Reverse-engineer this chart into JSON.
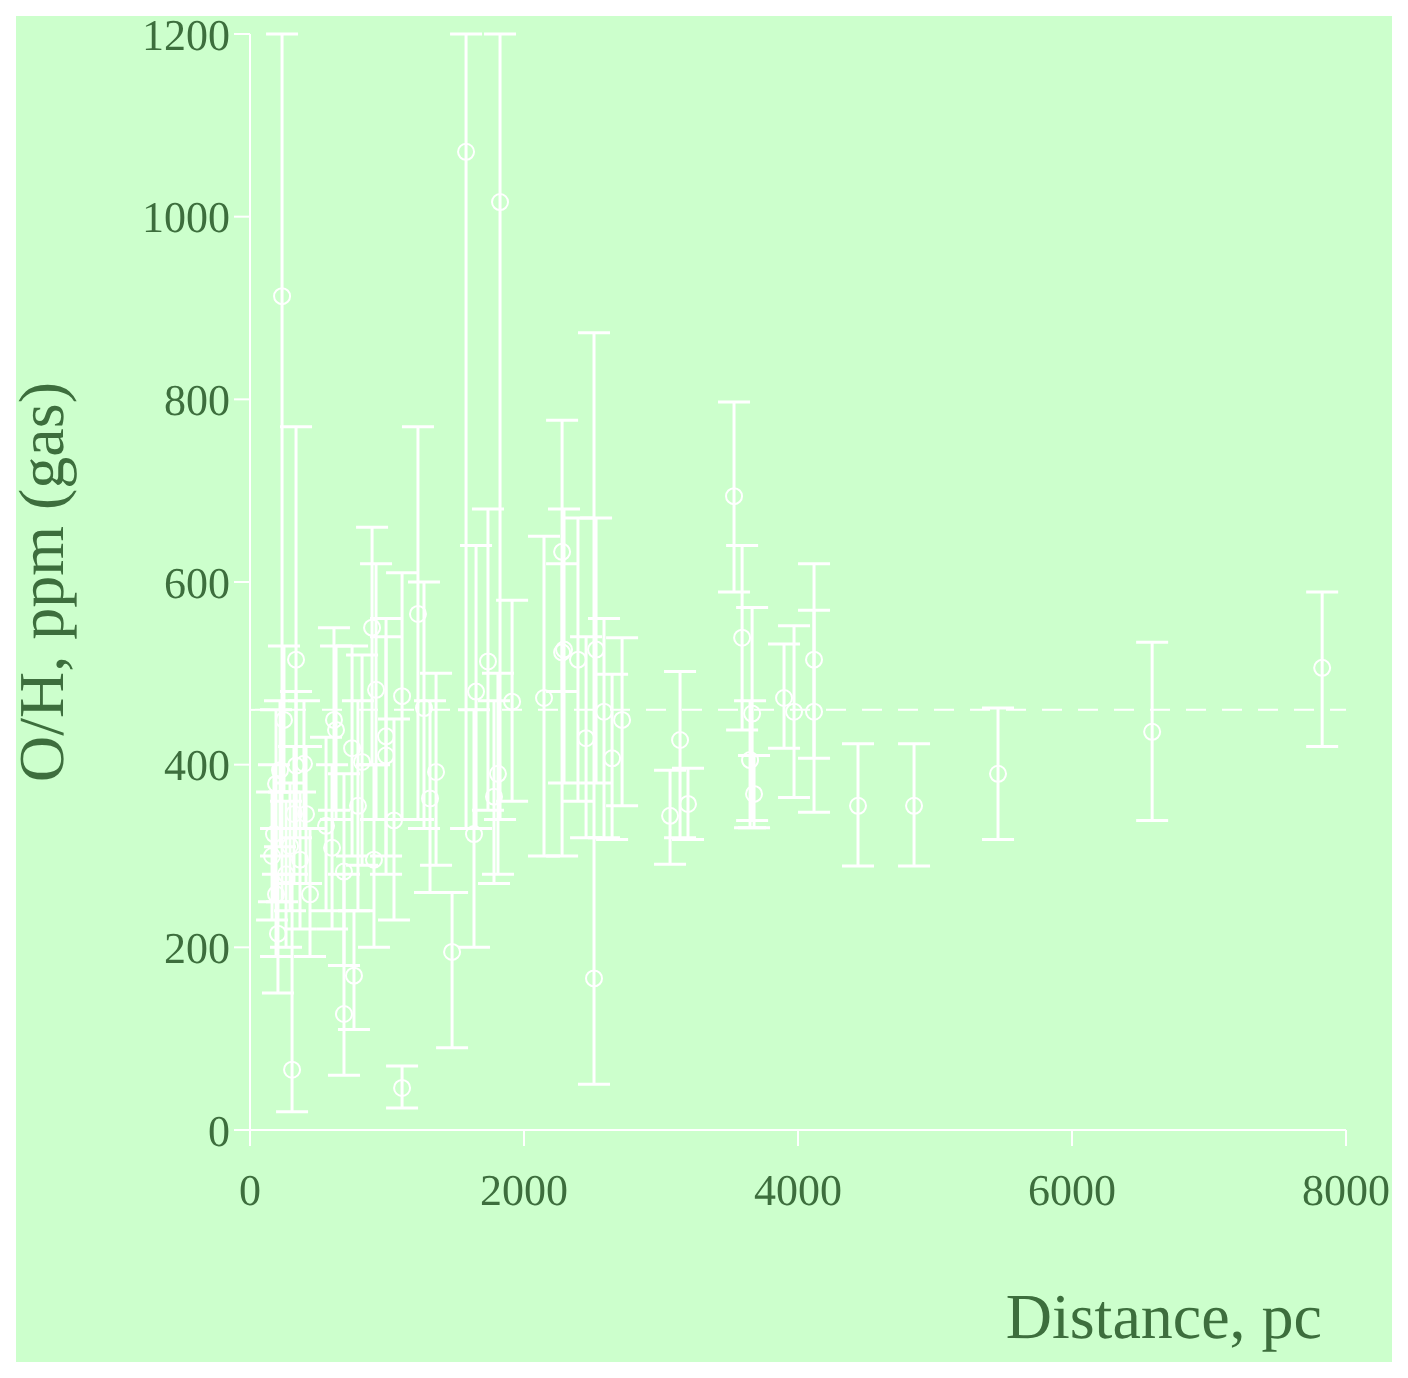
{
  "chart_data": {
    "type": "scatter",
    "xlabel": "Distance, pc",
    "ylabel": "O/H, ppm (gas)",
    "xlim": [
      0,
      8000
    ],
    "ylim": [
      0,
      1200
    ],
    "xticks": [
      0,
      2000,
      4000,
      6000,
      8000
    ],
    "yticks": [
      0,
      200,
      400,
      600,
      800,
      1000,
      1200
    ],
    "marker": "circle",
    "ref_lines": [
      {
        "axis": "y",
        "value": 460,
        "color": "#ffffff",
        "line_style": "dashed"
      }
    ],
    "series": [
      {
        "color": "#ffffff",
        "x": [
          234,
          1577,
          1825,
          307,
          1110,
          686,
          759,
          1475,
          2511,
          336,
          891,
          1226,
          2278,
          2278,
          3533,
          3592,
          3665,
          3650,
          3679,
          3898,
          3971,
          4117,
          4117,
          4438,
          4847,
          5460,
          3139,
          3066,
          3197,
          2716,
          2643,
          2584,
          6585,
          7826,
          248,
          219,
          190,
          336,
          394,
          175,
          161,
          190,
          204,
          292,
          321,
          409,
          438,
          263,
          365,
          613,
          628,
          555,
          599,
          686,
          745,
          818,
          788,
          920,
          905,
          993,
          993,
          1051,
          1110,
          1270,
          1358,
          1314,
          1635,
          1650,
          1737,
          1781,
          1810,
          1913,
          2146,
          2292,
          2394,
          2526,
          2453
        ],
        "values": [
          913,
          1071,
          1016,
          66,
          46,
          127,
          169,
          195,
          166,
          515,
          550,
          565,
          633,
          523,
          694,
          539,
          456,
          405,
          368,
          473,
          458,
          515,
          458,
          355,
          355,
          390,
          427,
          344,
          357,
          449,
          407,
          458,
          436,
          506,
          449,
          394,
          379,
          399,
          401,
          324,
          300,
          258,
          215,
          311,
          346,
          346,
          258,
          280,
          296,
          449,
          438,
          333,
          309,
          283,
          418,
          403,
          355,
          482,
          296,
          431,
          410,
          339,
          475,
          462,
          392,
          363,
          324,
          480,
          513,
          365,
          390,
          469,
          473,
          526,
          515,
          526,
          429
        ],
        "errors": [
          [
            250,
            1200
          ],
          [
            330,
            1200
          ],
          [
            340,
            1200
          ],
          [
            20,
            280
          ],
          [
            24,
            70
          ],
          [
            60,
            280
          ],
          [
            110,
            240
          ],
          [
            90,
            260
          ],
          [
            50,
            873
          ],
          [
            330,
            770
          ],
          [
            400,
            660
          ],
          [
            340,
            770
          ],
          [
            480,
            777
          ],
          [
            300,
            620
          ],
          [
            589,
            797
          ],
          [
            438,
            640
          ],
          [
            339,
            572
          ],
          [
            331,
            470
          ],
          [
            331,
            410
          ],
          [
            418,
            532
          ],
          [
            364,
            552
          ],
          [
            407,
            620
          ],
          [
            348,
            569
          ],
          [
            289,
            423
          ],
          [
            289,
            423
          ],
          [
            318,
            462
          ],
          [
            320,
            502
          ],
          [
            291,
            394
          ],
          [
            318,
            396
          ],
          [
            355,
            539
          ],
          [
            318,
            499
          ],
          [
            320,
            560
          ],
          [
            339,
            534
          ],
          [
            420,
            589
          ],
          [
            370,
            530
          ],
          [
            310,
            470
          ],
          [
            300,
            460
          ],
          [
            320,
            480
          ],
          [
            330,
            470
          ],
          [
            250,
            400
          ],
          [
            230,
            370
          ],
          [
            190,
            330
          ],
          [
            150,
            280
          ],
          [
            240,
            380
          ],
          [
            270,
            420
          ],
          [
            270,
            420
          ],
          [
            190,
            330
          ],
          [
            200,
            360
          ],
          [
            220,
            370
          ],
          [
            350,
            550
          ],
          [
            340,
            530
          ],
          [
            240,
            430
          ],
          [
            220,
            400
          ],
          [
            180,
            390
          ],
          [
            300,
            530
          ],
          [
            290,
            520
          ],
          [
            240,
            470
          ],
          [
            340,
            620
          ],
          [
            200,
            400
          ],
          [
            300,
            560
          ],
          [
            280,
            540
          ],
          [
            230,
            450
          ],
          [
            340,
            610
          ],
          [
            330,
            600
          ],
          [
            290,
            500
          ],
          [
            260,
            470
          ],
          [
            200,
            460
          ],
          [
            330,
            640
          ],
          [
            350,
            680
          ],
          [
            270,
            470
          ],
          [
            280,
            500
          ],
          [
            360,
            580
          ],
          [
            300,
            650
          ],
          [
            380,
            680
          ],
          [
            360,
            670
          ],
          [
            380,
            670
          ],
          [
            320,
            540
          ]
        ]
      }
    ]
  }
}
